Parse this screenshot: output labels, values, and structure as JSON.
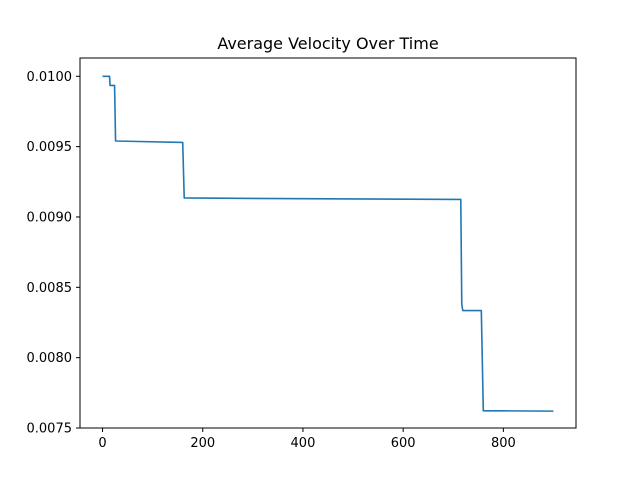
{
  "chart_data": {
    "type": "line",
    "title": "Average Velocity Over Time",
    "xlabel": "",
    "ylabel": "",
    "xlim": [
      -45,
      945
    ],
    "ylim": [
      0.0075,
      0.01013
    ],
    "x_ticks": [
      0,
      200,
      400,
      600,
      800
    ],
    "y_ticks": [
      0.0075,
      0.008,
      0.0085,
      0.009,
      0.0095,
      0.01
    ],
    "y_tick_labels": [
      "0.0075",
      "0.0080",
      "0.0085",
      "0.0090",
      "0.0095",
      "0.0100"
    ],
    "grid": false,
    "series": [
      {
        "color": "#1f77b4",
        "points": [
          [
            0,
            0.01
          ],
          [
            14,
            0.01
          ],
          [
            15,
            0.009935
          ],
          [
            24,
            0.009935
          ],
          [
            26,
            0.00954
          ],
          [
            160,
            0.00953
          ],
          [
            163,
            0.009135
          ],
          [
            300,
            0.009132
          ],
          [
            500,
            0.009128
          ],
          [
            715,
            0.009125
          ],
          [
            717,
            0.00838
          ],
          [
            719,
            0.008335
          ],
          [
            756,
            0.008335
          ],
          [
            760,
            0.007622
          ],
          [
            800,
            0.007622
          ],
          [
            900,
            0.00762
          ]
        ]
      }
    ]
  }
}
